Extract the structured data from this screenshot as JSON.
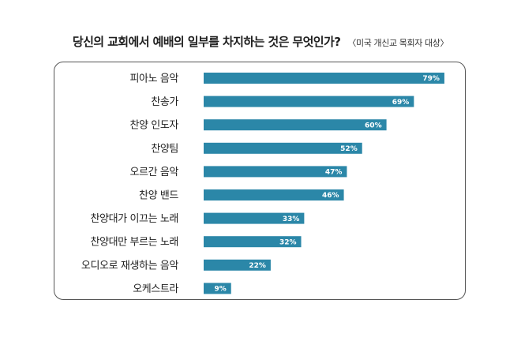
{
  "header": {
    "title": "당신의 교회에서 예배의 일부를 차지하는 것은 무엇인가?",
    "subtitle": "〈미국 개신교 목회자 대상〉"
  },
  "colors": {
    "bar": "#2b87a8",
    "bar_label": "#ffffff",
    "border": "#555555"
  },
  "chart_data": {
    "type": "bar",
    "orientation": "horizontal",
    "title": "당신의 교회에서 예배의 일부를 차지하는 것은 무엇인가?",
    "subtitle": "〈미국 개신교 목회자 대상〉",
    "categories": [
      "피아노 음악",
      "찬송가",
      "찬양 인도자",
      "찬양팀",
      "오르간 음악",
      "찬양 밴드",
      "찬양대가 이끄는 노래",
      "찬양대만 부르는 노래",
      "오디오로 재생하는 음악",
      "오케스트라"
    ],
    "values": [
      79,
      69,
      60,
      52,
      47,
      46,
      33,
      32,
      22,
      9
    ],
    "value_labels": [
      "79%",
      "69%",
      "60%",
      "52%",
      "47%",
      "46%",
      "33%",
      "32%",
      "22%",
      "9%"
    ],
    "unit": "%",
    "xlim": [
      0,
      100
    ],
    "grid": false,
    "legend": "none"
  }
}
